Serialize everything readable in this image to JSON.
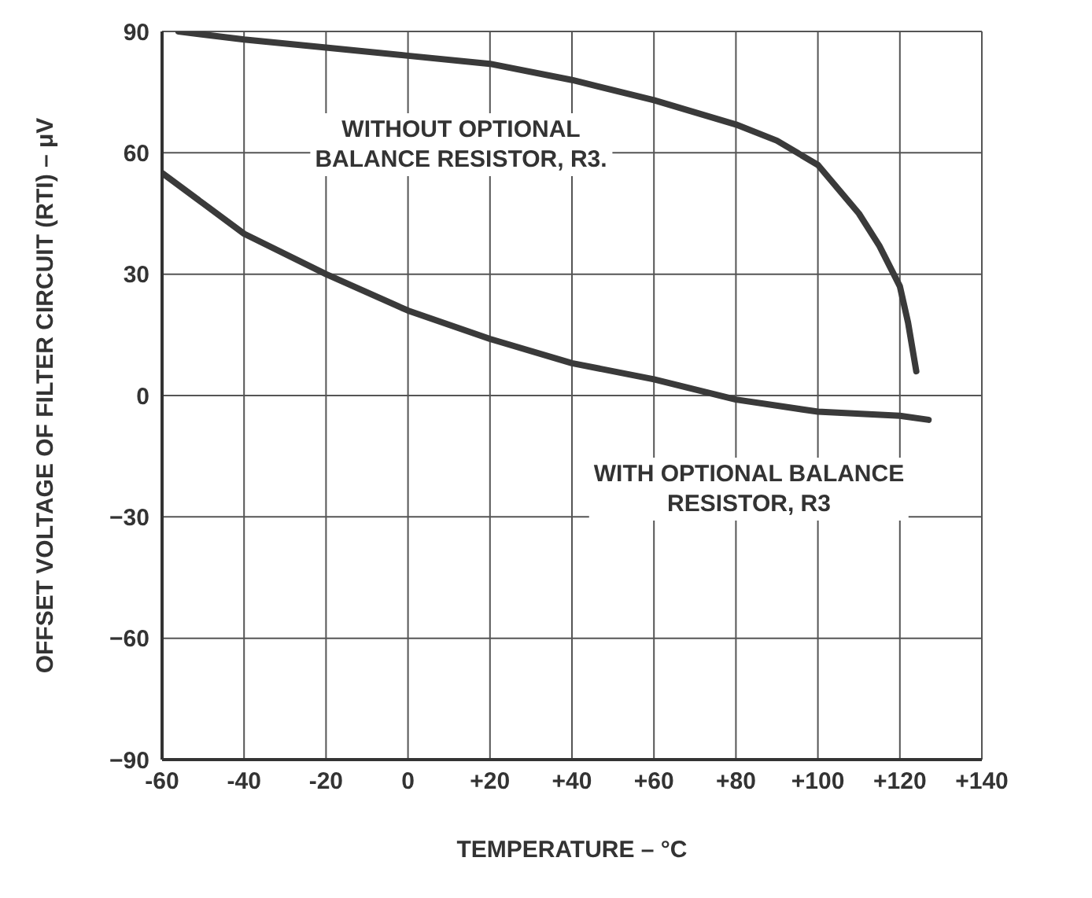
{
  "chart_data": {
    "type": "line",
    "xlabel": "TEMPERATURE – °C",
    "ylabel": "OFFSET VOLTAGE OF FILTER CIRCUIT (RTI) – μV",
    "xlim": [
      -60,
      140
    ],
    "ylim": [
      -90,
      90
    ],
    "xticks": [
      -60,
      -40,
      -20,
      0,
      {
        "value": 20,
        "label": "+20"
      },
      {
        "value": 40,
        "label": "+40"
      },
      {
        "value": 60,
        "label": "+60"
      },
      {
        "value": 80,
        "label": "+80"
      },
      {
        "value": 100,
        "label": "+100"
      },
      {
        "value": 120,
        "label": "+120"
      },
      {
        "value": 140,
        "label": "+140"
      }
    ],
    "yticks": [
      {
        "value": -90,
        "label": "−90"
      },
      {
        "value": -60,
        "label": "−60"
      },
      {
        "value": -30,
        "label": "−30"
      },
      0,
      30,
      60,
      90
    ],
    "grid": true,
    "marker": "none",
    "line_style": "solid",
    "series": [
      {
        "color": "#3a3a3a",
        "x": [
          -56,
          -40,
          -20,
          0,
          20,
          40,
          60,
          80,
          90,
          100,
          110,
          115,
          120,
          122,
          124
        ],
        "values": [
          90,
          88,
          86,
          84,
          82,
          78,
          73,
          67,
          63,
          57,
          45,
          37,
          27,
          18,
          6
        ]
      },
      {
        "color": "#3a3a3a",
        "x": [
          -60,
          -40,
          -20,
          0,
          20,
          40,
          60,
          80,
          100,
          120,
          127
        ],
        "values": [
          55,
          40,
          30,
          21,
          14,
          8,
          4,
          -1,
          -4,
          -5,
          -6
        ]
      }
    ],
    "annotations": [
      "WITHOUT OPTIONAL\nBALANCE RESISTOR, R3.",
      "WITH OPTIONAL BALANCE\nRESISTOR, R3"
    ]
  }
}
